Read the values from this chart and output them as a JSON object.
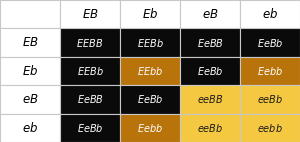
{
  "col_headers": [
    "EB",
    "Eb",
    "eB",
    "eb"
  ],
  "row_headers": [
    "EB",
    "Eb",
    "eB",
    "eb"
  ],
  "cells": [
    [
      "EEBB",
      "EEBb",
      "EeBB",
      "EeBb"
    ],
    [
      "EEBb",
      "EEbb",
      "EeBb",
      "Eebb"
    ],
    [
      "EeBB",
      "EeBb",
      "eeBB",
      "eeBb"
    ],
    [
      "EeBb",
      "Eebb",
      "eeBb",
      "eebb"
    ]
  ],
  "cell_colors": [
    [
      "#0a0a0a",
      "#0a0a0a",
      "#0a0a0a",
      "#0a0a0a"
    ],
    [
      "#0a0a0a",
      "#b8730a",
      "#0a0a0a",
      "#b8730a"
    ],
    [
      "#0a0a0a",
      "#0a0a0a",
      "#f5c842",
      "#f5c842"
    ],
    [
      "#0a0a0a",
      "#b8730a",
      "#f5c842",
      "#f5c842"
    ]
  ],
  "cell_text_colors": [
    [
      "#ffffff",
      "#ffffff",
      "#ffffff",
      "#ffffff"
    ],
    [
      "#ffffff",
      "#ffffff",
      "#ffffff",
      "#ffffff"
    ],
    [
      "#ffffff",
      "#ffffff",
      "#1a1a1a",
      "#1a1a1a"
    ],
    [
      "#ffffff",
      "#ffffff",
      "#1a1a1a",
      "#1a1a1a"
    ]
  ],
  "header_bg": "#ffffff",
  "header_text_color": "#000000",
  "border_color": "#c8c8c8",
  "fig_bg": "#ffffff",
  "cell_font_size": 7.0,
  "header_font_size": 8.5,
  "n_cols": 5,
  "n_rows": 5
}
